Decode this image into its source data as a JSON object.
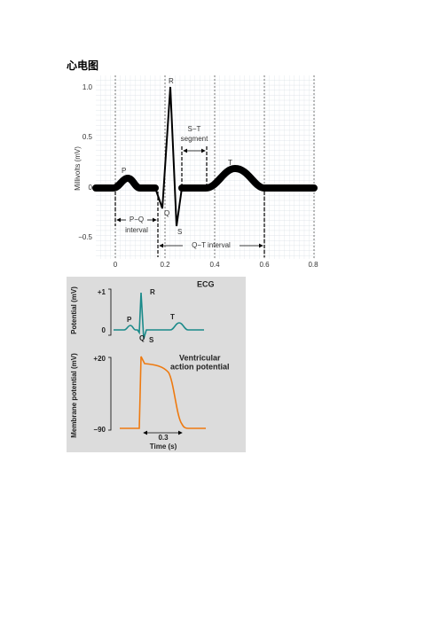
{
  "title": "心电图",
  "figure1": {
    "y_axis_label": "Millivolts (mV)",
    "y_tick_labels": [
      "1.0",
      "0.5",
      "0",
      "−0.5"
    ],
    "x_tick_labels": [
      "0",
      "0.2",
      "0.4",
      "0.6",
      "0.8"
    ],
    "wave_labels": [
      "P",
      "Q",
      "R",
      "S",
      "T"
    ],
    "annotations": {
      "st": "S−T",
      "segment": "segment",
      "pq": "P−Q",
      "interval": "interval",
      "qt": "Q−T interval"
    }
  },
  "figure2": {
    "ecg_title": "ECG",
    "ecg_axis_label": "Potential (mV)",
    "ecg_ticks": [
      "+1",
      "0"
    ],
    "ecg_wave_labels": [
      "P",
      "R",
      "Q",
      "S",
      "T"
    ],
    "ap_axis_label": "Membrane potential (mV)",
    "ap_ticks": [
      "+20",
      "−90"
    ],
    "ap_title_lines": [
      "Ventricular",
      "action potential"
    ],
    "duration": "0.3",
    "x_axis_label": "Time (s)"
  }
}
